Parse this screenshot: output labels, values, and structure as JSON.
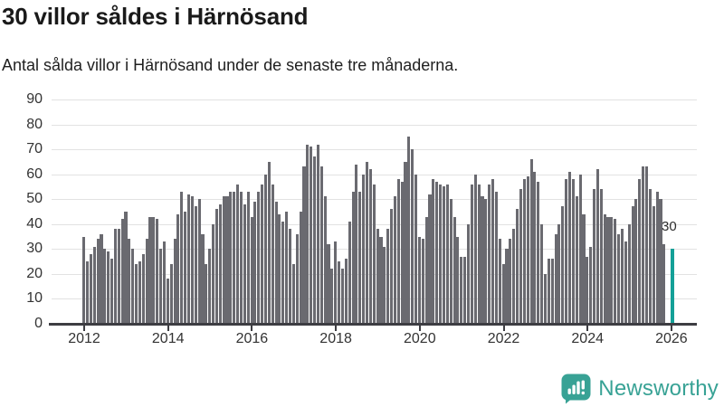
{
  "chart_data": {
    "type": "bar",
    "title": "30 villor såldes i Härnösand",
    "subtitle": "Antal sålda villor i Härnösand under de senaste tre månaderna.",
    "xlabel": "",
    "ylabel": "",
    "ylim": [
      0,
      90
    ],
    "grid": true,
    "y_ticks": [
      0,
      10,
      20,
      30,
      40,
      50,
      60,
      70,
      80,
      90
    ],
    "x_tick_labels": [
      "2012",
      "2014",
      "2016",
      "2018",
      "2020",
      "2022",
      "2024",
      "2026"
    ],
    "bar_color": "#6a6a70",
    "series": [
      {
        "year": 2012,
        "monthly_values": [
          35,
          25,
          28,
          31,
          34,
          36,
          30,
          29,
          26,
          38,
          38,
          42
        ]
      },
      {
        "year": 2013,
        "monthly_values": [
          45,
          34,
          30,
          24,
          25,
          28,
          34,
          43,
          43,
          42,
          30,
          33
        ]
      },
      {
        "year": 2014,
        "monthly_values": [
          18,
          24,
          34,
          44,
          53,
          45,
          52,
          51,
          47,
          50,
          36,
          24
        ]
      },
      {
        "year": 2015,
        "monthly_values": [
          30,
          40,
          46,
          48,
          51,
          51,
          53,
          53,
          56,
          53,
          48,
          53
        ]
      },
      {
        "year": 2016,
        "monthly_values": [
          43,
          49,
          53,
          56,
          60,
          65,
          56,
          49,
          44,
          41,
          45,
          38
        ]
      },
      {
        "year": 2017,
        "monthly_values": [
          24,
          36,
          45,
          63,
          72,
          71,
          67,
          72,
          63,
          51,
          32,
          22
        ]
      },
      {
        "year": 2018,
        "monthly_values": [
          33,
          25,
          22,
          26,
          41,
          53,
          64,
          53,
          60,
          65,
          62,
          56
        ]
      },
      {
        "year": 2019,
        "monthly_values": [
          38,
          35,
          31,
          38,
          46,
          51,
          58,
          57,
          65,
          75,
          70,
          60
        ]
      },
      {
        "year": 2020,
        "monthly_values": [
          35,
          34,
          43,
          52,
          58,
          57,
          56,
          55,
          56,
          50,
          43,
          35
        ]
      },
      {
        "year": 2021,
        "monthly_values": [
          27,
          27,
          40,
          56,
          60,
          56,
          51,
          50,
          56,
          58,
          53,
          34
        ]
      },
      {
        "year": 2022,
        "monthly_values": [
          24,
          30,
          34,
          38,
          46,
          54,
          58,
          59,
          66,
          61,
          57,
          40
        ]
      },
      {
        "year": 2023,
        "monthly_values": [
          20,
          26,
          26,
          36,
          40,
          47,
          58,
          61,
          58,
          51,
          60,
          44
        ]
      },
      {
        "year": 2024,
        "monthly_values": [
          27,
          31,
          54,
          62,
          54,
          44,
          43,
          43,
          42,
          36,
          38,
          33
        ]
      },
      {
        "year": 2025,
        "monthly_values": [
          40,
          47,
          50,
          58,
          63,
          63,
          54,
          47,
          53,
          50,
          32
        ]
      }
    ],
    "latest": {
      "value": 30,
      "label": "30",
      "highlighted": true,
      "color": "#14a098"
    }
  },
  "branding": {
    "name": "Newsworthy",
    "color": "#38a295",
    "icon": "newsworthy-speech-bubble-chart-icon"
  }
}
